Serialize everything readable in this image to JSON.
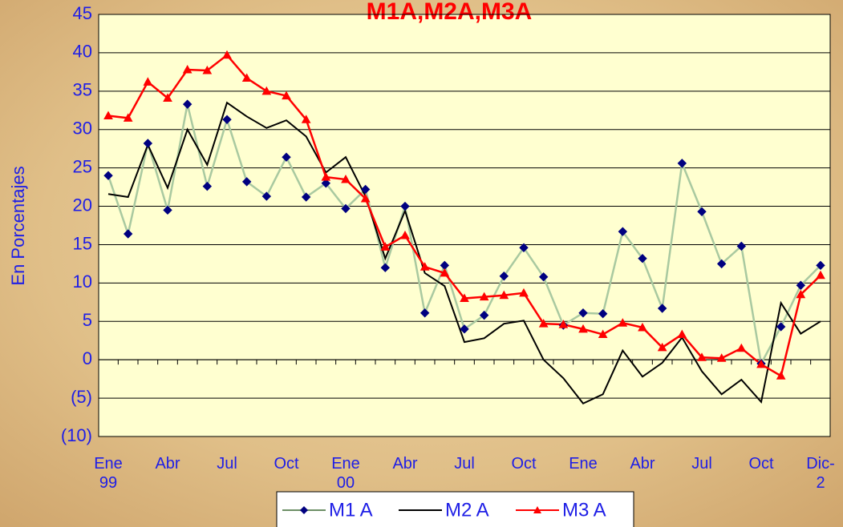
{
  "chart_data": {
    "type": "line",
    "title": "M1A,M2A,M3A",
    "y_label": "En Porcentajes",
    "categories": [
      "Ene 99",
      null,
      null,
      "Abr",
      null,
      null,
      "Jul",
      null,
      null,
      "Oct",
      null,
      null,
      "Ene 00",
      null,
      null,
      "Abr",
      null,
      null,
      "Jul",
      null,
      null,
      "Oct",
      null,
      null,
      "Ene",
      null,
      null,
      "Abr",
      null,
      null,
      "Jul",
      null,
      null,
      "Oct",
      null,
      null,
      "Dic-2"
    ],
    "series": [
      {
        "name": "M1 A",
        "color": "#a9c9a0",
        "marker_color": "#000080",
        "marker": "diamond",
        "values": [
          24,
          16.4,
          28.2,
          19.5,
          33.3,
          22.6,
          31.3,
          23.2,
          21.3,
          26.4,
          21.2,
          23,
          19.7,
          22.2,
          12,
          20,
          6.1,
          12.3,
          4,
          5.8,
          10.9,
          14.6,
          10.8,
          4.5,
          6.1,
          6,
          16.7,
          13.2,
          6.7,
          25.6,
          19.3,
          12.5,
          14.8,
          -0.5,
          4.3,
          9.7,
          12.3
        ]
      },
      {
        "name": "M2 A",
        "color": "#000000",
        "marker": "none",
        "values": [
          21.6,
          21.2,
          28,
          22.4,
          30,
          25.4,
          33.5,
          31.7,
          30.2,
          31.2,
          29.1,
          24.4,
          26.4,
          21.3,
          13.2,
          19.4,
          11.3,
          9.6,
          2.3,
          2.8,
          4.7,
          5.1,
          0,
          -2.4,
          -5.7,
          -4.5,
          1.2,
          -2.2,
          -0.4,
          2.9,
          -1.5,
          -4.5,
          -2.6,
          -5.5,
          7.4,
          3.4,
          5
        ]
      },
      {
        "name": "M3 A",
        "color": "#ff0000",
        "marker_color": "#ff0000",
        "marker": "triangle",
        "values": [
          31.8,
          31.5,
          36.2,
          34.1,
          37.8,
          37.7,
          39.7,
          36.7,
          35,
          34.4,
          31.3,
          23.8,
          23.5,
          21,
          14.7,
          16.2,
          12.1,
          11.3,
          8,
          8.2,
          8.4,
          8.7,
          4.7,
          4.6,
          4,
          3.3,
          4.8,
          4.2,
          1.6,
          3.3,
          0.3,
          0.2,
          1.5,
          -0.6,
          -2.1,
          8.5,
          11
        ]
      }
    ],
    "ylim": [
      -10,
      45
    ],
    "yticks": [
      {
        "value": -10,
        "label": "(10)"
      },
      {
        "value": -5,
        "label": "(5)"
      },
      0,
      5,
      10,
      15,
      20,
      25,
      30,
      35,
      40,
      45
    ],
    "grid": true,
    "legend": "bottom"
  }
}
